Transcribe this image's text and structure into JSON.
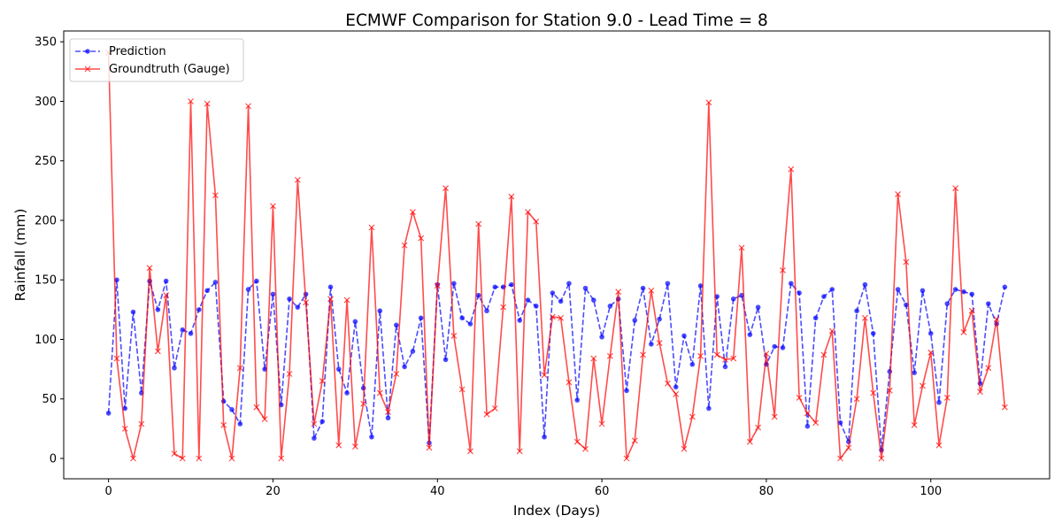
{
  "chart_data": {
    "type": "line",
    "title": "ECMWF Comparison for Station 9.0 - Lead Time = 8",
    "xlabel": "Index (Days)",
    "ylabel": "Rainfall (mm)",
    "xlim": [
      -5.45,
      114.45
    ],
    "ylim": [
      -17.1,
      359.1
    ],
    "xticks": [
      0,
      20,
      40,
      60,
      80,
      100
    ],
    "yticks": [
      0,
      50,
      100,
      150,
      200,
      250,
      300,
      350
    ],
    "grid": false,
    "legend_position": "upper left",
    "series": [
      {
        "name": "Prediction",
        "color": "#0000ff",
        "linestyle": "dashed",
        "marker": "circle",
        "values": [
          38,
          150,
          42,
          123,
          55,
          149,
          125,
          149,
          76,
          108,
          105,
          125,
          141,
          148,
          48,
          41,
          29,
          142,
          149,
          75,
          138,
          45,
          134,
          127,
          138,
          17,
          31,
          144,
          75,
          55,
          115,
          59,
          18,
          124,
          34,
          112,
          77,
          90,
          118,
          13,
          146,
          83,
          147,
          118,
          113,
          137,
          124,
          144,
          144,
          146,
          116,
          133,
          128,
          18,
          139,
          132,
          147,
          49,
          143,
          133,
          102,
          128,
          134,
          57,
          116,
          143,
          96,
          117,
          147,
          60,
          103,
          79,
          145,
          42,
          136,
          77,
          134,
          137,
          104,
          127,
          79,
          94,
          93,
          147,
          139,
          27,
          118,
          136,
          142,
          30,
          14,
          124,
          146,
          105,
          7,
          73,
          142,
          129,
          72,
          141,
          105,
          47,
          130,
          142,
          140,
          138,
          63,
          130,
          113,
          144
        ]
      },
      {
        "name": "Groundtruth (Gauge)",
        "color": "#ff0000",
        "linestyle": "solid",
        "marker": "x",
        "values": [
          341,
          84,
          25,
          0,
          29,
          160,
          90,
          137,
          4,
          0,
          300,
          0,
          298,
          221,
          28,
          0,
          76,
          296,
          43,
          33,
          212,
          0,
          71,
          234,
          131,
          29,
          65,
          134,
          11,
          133,
          10,
          46,
          194,
          55,
          39,
          71,
          179,
          207,
          185,
          9,
          145,
          227,
          103,
          58,
          6,
          197,
          37,
          42,
          127,
          220,
          6,
          207,
          199,
          70,
          119,
          118,
          64,
          14,
          8,
          84,
          29,
          86,
          140,
          0,
          15,
          87,
          141,
          97,
          63,
          54,
          8,
          35,
          86,
          299,
          87,
          83,
          84,
          177,
          14,
          26,
          88,
          35,
          158,
          243,
          51,
          38,
          30,
          87,
          107,
          0,
          9,
          50,
          118,
          55,
          0,
          57,
          222,
          165,
          28,
          61,
          89,
          11,
          51,
          227,
          106,
          124,
          56,
          76,
          117,
          43
        ]
      }
    ]
  }
}
